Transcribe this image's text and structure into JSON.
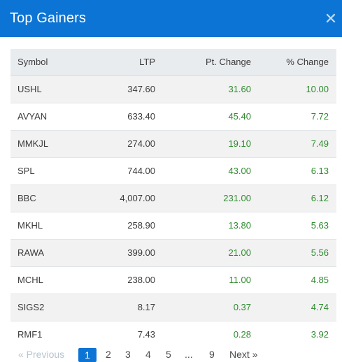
{
  "modal": {
    "title": "Top Gainers",
    "close_icon": "close-icon"
  },
  "table": {
    "headers": [
      "Symbol",
      "LTP",
      "Pt. Change",
      "% Change"
    ],
    "rows": [
      [
        "USHL",
        "347.60",
        "31.60",
        "10.00"
      ],
      [
        "AVYAN",
        "633.40",
        "45.40",
        "7.72"
      ],
      [
        "MMKJL",
        "274.00",
        "19.10",
        "7.49"
      ],
      [
        "SPL",
        "744.00",
        "43.00",
        "6.13"
      ],
      [
        "BBC",
        "4,007.00",
        "231.00",
        "6.12"
      ],
      [
        "MKHL",
        "258.90",
        "13.80",
        "5.63"
      ],
      [
        "RAWA",
        "399.00",
        "21.00",
        "5.56"
      ],
      [
        "MCHL",
        "238.00",
        "11.00",
        "4.85"
      ],
      [
        "SIGS2",
        "8.17",
        "0.37",
        "4.74"
      ],
      [
        "RMF1",
        "7.43",
        "0.28",
        "3.92"
      ]
    ]
  },
  "pagination": {
    "previous": "« Previous",
    "pages": [
      "1",
      "2",
      "3",
      "4",
      "5",
      "...",
      "9"
    ],
    "active": "1",
    "next": "Next »"
  },
  "colors": {
    "header_bg": "#0c74d4",
    "positive": "#2e8b2e"
  }
}
